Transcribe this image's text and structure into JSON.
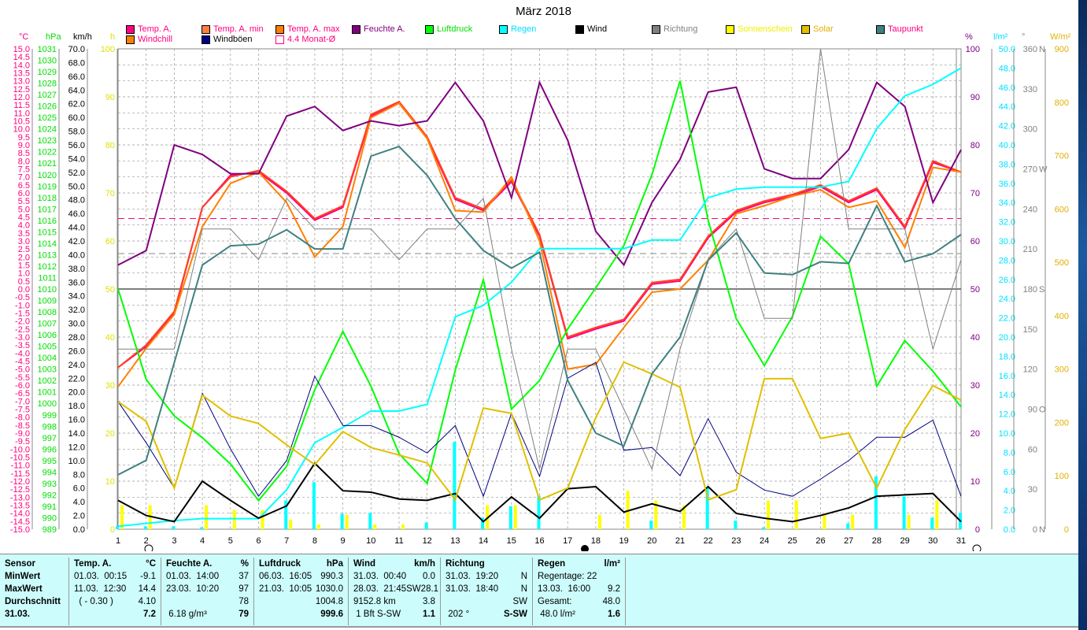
{
  "title": "März 2018",
  "legend": [
    {
      "label": "Temp. A.",
      "color": "#ff0080",
      "text_color": "#ff0080"
    },
    {
      "label": "Temp. A. min",
      "color": "#ff8040",
      "text_color": "#ff0080"
    },
    {
      "label": "Temp. A. max",
      "color": "#ff8000",
      "text_color": "#ff0080"
    },
    {
      "label": "Feuchte A.",
      "color": "#800080",
      "text_color": "#800080"
    },
    {
      "label": "Luftdruck",
      "color": "#00ff00",
      "text_color": "#00e000"
    },
    {
      "label": "Regen",
      "color": "#00ffff",
      "text_color": "#00e0ff"
    },
    {
      "label": "Wind",
      "color": "#000000",
      "text_color": "#000000"
    },
    {
      "label": "Richtung",
      "color": "#808080",
      "text_color": "#808080"
    },
    {
      "label": "Sonnenschein",
      "color": "#ffff00",
      "text_color": "#f0f000"
    },
    {
      "label": "Solar",
      "color": "#e0c000",
      "text_color": "#e0b000"
    },
    {
      "label": "Taupunkt",
      "color": "#408080",
      "text_color": "#ff0080"
    },
    {
      "label": "Windchill",
      "color": "#ff8000",
      "text_color": "#ff0080"
    },
    {
      "label": "Windböen",
      "color": "#000080",
      "text_color": "#000000"
    },
    {
      "label": "4.4 Monat-Ø",
      "color": "#ffffff",
      "text_color": "#ff0080"
    }
  ],
  "axis_units": {
    "temp": "°C",
    "pressure": "hPa",
    "wind": "km/h",
    "sun": "h",
    "humidity": "%",
    "rain": "l/m²",
    "direction": "°",
    "solar": "W/m²"
  },
  "chart_data": {
    "type": "line",
    "title": "März 2018",
    "x": [
      1,
      2,
      3,
      4,
      5,
      6,
      7,
      8,
      9,
      10,
      11,
      12,
      13,
      14,
      15,
      16,
      17,
      18,
      19,
      20,
      21,
      22,
      23,
      24,
      25,
      26,
      27,
      28,
      29,
      30,
      31
    ],
    "axes": {
      "temp": [
        -15,
        15
      ],
      "pressure": [
        989,
        1031
      ],
      "wind": [
        0,
        70
      ],
      "sun": [
        0,
        100
      ],
      "humidity": [
        0,
        100
      ],
      "rain": [
        0,
        50
      ],
      "direction": [
        0,
        360
      ],
      "solar": [
        0,
        900
      ]
    },
    "direction_labels": {
      "360": "N",
      "270": "W",
      "180": "S",
      "90": "O",
      "0": "N"
    },
    "month_avg_temp": 4.4,
    "series": [
      {
        "name": "Temp. A.",
        "axis": "temp",
        "color": "#ff0080",
        "values": [
          -4.9,
          -3.6,
          -1.5,
          5.1,
          7.1,
          7.3,
          6.0,
          4.3,
          5.1,
          10.8,
          11.6,
          9.4,
          5.6,
          4.9,
          6.7,
          3.3,
          -3.1,
          -2.5,
          -2.0,
          0.3,
          0.5,
          3.2,
          4.8,
          5.4,
          5.8,
          6.4,
          5.4,
          6.2,
          3.8,
          7.9,
          7.3
        ]
      },
      {
        "name": "Temp. A. max",
        "axis": "temp",
        "color": "#ff4020",
        "values": [
          -4.9,
          -3.5,
          -1.4,
          5.1,
          7.0,
          7.4,
          6.1,
          4.4,
          5.2,
          10.9,
          11.7,
          9.5,
          5.7,
          5.0,
          6.8,
          3.4,
          -3.0,
          -2.4,
          -1.9,
          0.4,
          0.6,
          3.3,
          4.9,
          5.5,
          5.9,
          6.5,
          5.5,
          6.3,
          3.9,
          8.0,
          7.3
        ]
      },
      {
        "name": "Windchill",
        "axis": "temp",
        "color": "#ff8000",
        "values": [
          -6.1,
          -3.7,
          -1.6,
          3.9,
          6.6,
          7.3,
          5.4,
          2.0,
          3.9,
          10.7,
          11.6,
          9.4,
          4.9,
          4.8,
          7.0,
          3.0,
          -5.0,
          -4.7,
          -2.4,
          -0.2,
          0.0,
          1.8,
          4.7,
          5.2,
          5.8,
          6.2,
          5.1,
          5.5,
          2.6,
          7.6,
          7.3
        ]
      },
      {
        "name": "Feuchte A.",
        "axis": "humidity",
        "color": "#800080",
        "values": [
          55,
          58,
          80,
          78,
          74,
          74,
          86,
          88,
          83,
          85,
          84,
          85,
          93,
          85,
          69,
          93,
          81,
          62,
          55,
          68,
          77,
          91,
          92,
          75,
          73,
          73,
          79,
          93,
          88,
          68,
          79
        ]
      },
      {
        "name": "Luftdruck",
        "axis": "pressure",
        "color": "#00ff00",
        "values": [
          1010,
          1002.1,
          998.9,
          997,
          994.7,
          991.5,
          994.5,
          1001.2,
          1006.3,
          1001.5,
          995.6,
          993,
          1002.9,
          1010.8,
          999.5,
          1002,
          1006.5,
          1010.1,
          1013.8,
          1020,
          1028.2,
          1016,
          1007.4,
          1003.3,
          1007.6,
          1014.6,
          1012.2,
          1001.5,
          1005.5,
          1002.8,
          999.7
        ]
      },
      {
        "name": "Regen",
        "axis": "rain",
        "color": "#00ffff",
        "values": [
          0.3,
          0.6,
          0.9,
          1.1,
          1.1,
          1.1,
          4.1,
          9.0,
          10.6,
          12.3,
          12.3,
          13.0,
          22.1,
          23.3,
          25.7,
          29.2,
          29.2,
          29.2,
          29.2,
          30.1,
          30.1,
          34.5,
          35.4,
          35.6,
          35.6,
          35.6,
          36.2,
          41.7,
          45.1,
          46.3,
          48.0
        ]
      },
      {
        "name": "Wind",
        "axis": "wind",
        "color": "#000000",
        "values": [
          4.2,
          2.0,
          1.1,
          7.0,
          4.2,
          1.6,
          3.4,
          9.6,
          5.6,
          5.4,
          4.4,
          4.2,
          5.2,
          1.1,
          4.7,
          1.6,
          5.9,
          6.2,
          2.5,
          3.7,
          2.6,
          6.2,
          2.3,
          1.6,
          1.1,
          2.0,
          3.1,
          4.8,
          5.0,
          5.2,
          1.1
        ]
      },
      {
        "name": "Windböen",
        "axis": "wind",
        "color": "#000080",
        "values": [
          18.6,
          12.6,
          6.0,
          19.8,
          11.7,
          4.8,
          10.0,
          22.3,
          15.1,
          15.1,
          13.4,
          11.1,
          15.1,
          4.8,
          16.9,
          7.7,
          22.0,
          24.3,
          11.5,
          11.9,
          7.8,
          16.1,
          8.3,
          5.7,
          4.8,
          7.3,
          10.0,
          13.4,
          13.4,
          15.9,
          4.8
        ]
      },
      {
        "name": "Richtung",
        "axis": "direction",
        "color": "#808080",
        "values": [
          135,
          135,
          135,
          225,
          225,
          202,
          248,
          225,
          225,
          225,
          202,
          225,
          225,
          248,
          135,
          45,
          135,
          135,
          90,
          45,
          135,
          202,
          225,
          158,
          158,
          360,
          225,
          225,
          225,
          135,
          202
        ]
      },
      {
        "name": "Solar",
        "axis": "solar",
        "color": "#e0c000",
        "values": [
          239,
          202,
          77,
          251,
          212,
          198,
          158,
          121,
          183,
          153,
          139,
          124,
          55,
          227,
          217,
          55,
          77,
          209,
          313,
          291,
          266,
          55,
          74,
          282,
          282,
          170,
          180,
          77,
          187,
          269,
          242
        ]
      },
      {
        "name": "Taupunkt",
        "axis": "temp",
        "color": "#408080",
        "values": [
          -11.6,
          -10.7,
          -4.6,
          1.5,
          2.7,
          2.8,
          3.7,
          2.5,
          2.5,
          8.3,
          8.9,
          7.1,
          4.4,
          2.4,
          1.3,
          2.3,
          -5.7,
          -9.0,
          -9.8,
          -5.3,
          -3.0,
          1.8,
          3.5,
          1.0,
          0.9,
          1.7,
          1.6,
          5.2,
          1.7,
          2.2,
          3.4
        ]
      }
    ],
    "bars": [
      {
        "name": "Sonnenschein",
        "axis": "sun",
        "color": "#ffff00",
        "values": [
          5,
          5,
          0,
          5,
          4,
          4,
          2,
          1,
          3,
          1,
          1,
          0,
          0,
          5,
          5,
          0,
          0,
          3,
          8,
          6,
          5,
          0,
          0,
          6,
          6,
          3,
          3,
          0,
          3,
          6,
          0
        ]
      },
      {
        "name": "Regen täglich",
        "axis": "rain",
        "color": "#00ffff",
        "values": [
          0.3,
          0.3,
          0.3,
          0.2,
          0,
          0,
          3.0,
          4.9,
          1.6,
          1.7,
          0,
          0.7,
          9.1,
          1.2,
          2.4,
          3.5,
          0,
          0,
          0,
          0.9,
          0,
          4.4,
          0.9,
          0.2,
          0,
          0,
          0.6,
          5.5,
          3.4,
          1.2,
          1.7
        ]
      }
    ]
  },
  "table": {
    "columns": [
      {
        "header": "Sensor",
        "unit": "",
        "rows": [
          [
            "MinWert",
            ""
          ],
          [
            "MaxWert",
            ""
          ],
          [
            "Durchschnitt",
            ""
          ],
          [
            "31.03.",
            ""
          ]
        ],
        "bold": true
      },
      {
        "header": "Temp. A.",
        "unit": "°C",
        "rows": [
          [
            "01.03.  00:15",
            "-9.1"
          ],
          [
            "11.03.  12:30",
            "14.4"
          ],
          [
            "  ( - 0.30 )",
            "4.10"
          ],
          [
            "",
            "7.2"
          ]
        ]
      },
      {
        "header": "Feuchte A.",
        "unit": "%",
        "rows": [
          [
            "01.03.  14:00",
            "37"
          ],
          [
            "23.03.  10:20",
            "97"
          ],
          [
            "",
            "78"
          ],
          [
            " 6.18 g/m³",
            "79"
          ]
        ]
      },
      {
        "header": "Luftdruck",
        "unit": "hPa",
        "rows": [
          [
            "06.03.  16:05",
            "990.3"
          ],
          [
            "21.03.  10:05",
            "1030.0"
          ],
          [
            "",
            "1004.8"
          ],
          [
            "",
            "999.6"
          ]
        ]
      },
      {
        "header": "Wind",
        "unit": "km/h",
        "rows": [
          [
            "31.03.  00:40",
            "0.0"
          ],
          [
            "28.03.  21:45SW",
            "28.1"
          ],
          [
            "9152.8 km",
            "3.8"
          ],
          [
            " 1 Bft S-SW",
            "1.1"
          ]
        ]
      },
      {
        "header": "Richtung",
        "unit": "",
        "rows": [
          [
            "31.03.  19:20",
            "N"
          ],
          [
            "31.03.  18:40",
            "N"
          ],
          [
            "",
            "SW"
          ],
          [
            " 202 °",
            "S-SW"
          ]
        ]
      },
      {
        "header": "Regen",
        "unit": "l/m²",
        "rows": [
          [
            "Regentage: 22",
            ""
          ],
          [
            "13.03.  16:00",
            "9.2"
          ],
          [
            "Gesamt:",
            "48.0"
          ],
          [
            " 48.0 l/m²",
            "1.6"
          ]
        ]
      }
    ]
  }
}
